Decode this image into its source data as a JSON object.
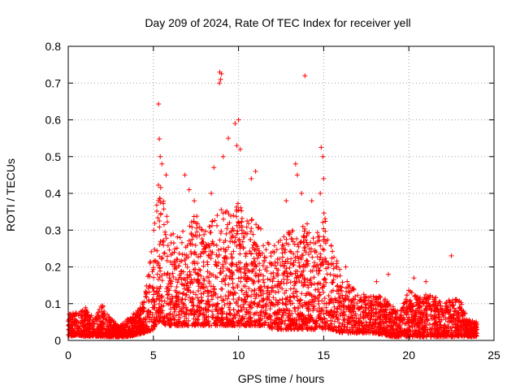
{
  "chart_data": {
    "type": "scatter",
    "title": "Day 209 of 2024, Rate Of TEC Index for receiver yell",
    "xlabel": "GPS time / hours",
    "ylabel": "ROTI / TECUs",
    "xlim": [
      0,
      25
    ],
    "ylim": [
      0,
      0.8
    ],
    "xticks": [
      0,
      5,
      10,
      15,
      20,
      25
    ],
    "yticks": [
      0,
      0.1,
      0.2,
      0.3,
      0.4,
      0.5,
      0.6,
      0.7,
      0.8
    ],
    "xtick_labels": [
      "0",
      "5",
      "10",
      "15",
      "20",
      "25"
    ],
    "ytick_labels": [
      "0",
      "0.1",
      "0.2",
      "0.3",
      "0.4",
      "0.5",
      "0.6",
      "0.7",
      "0.8"
    ],
    "grid": true,
    "marker": "+",
    "color": "#ff0000",
    "series": [
      {
        "name": "ROTI",
        "envelope": {
          "x": [
            0,
            0.5,
            1,
            1.5,
            2,
            2.5,
            3,
            3.5,
            4,
            4.5,
            5,
            5.25,
            5.5,
            5.75,
            6,
            6.5,
            7,
            7.5,
            8,
            8.5,
            9,
            9.5,
            10,
            10.5,
            11,
            11.5,
            12,
            12.5,
            13,
            13.5,
            14,
            14.5,
            15,
            15.5,
            16,
            16.5,
            17,
            17.5,
            18,
            18.5,
            19,
            19.5,
            20,
            20.5,
            21,
            21.5,
            22,
            22.5,
            23,
            23.5,
            24
          ],
          "upper": [
            0.07,
            0.08,
            0.09,
            0.06,
            0.1,
            0.06,
            0.04,
            0.06,
            0.08,
            0.12,
            0.3,
            0.45,
            0.42,
            0.35,
            0.3,
            0.28,
            0.32,
            0.35,
            0.3,
            0.33,
            0.36,
            0.35,
            0.38,
            0.33,
            0.36,
            0.28,
            0.26,
            0.28,
            0.3,
            0.3,
            0.32,
            0.3,
            0.35,
            0.25,
            0.2,
            0.15,
            0.14,
            0.12,
            0.12,
            0.12,
            0.1,
            0.08,
            0.14,
            0.12,
            0.13,
            0.12,
            0.1,
            0.12,
            0.11,
            0.06,
            0.05
          ],
          "lower": [
            0.01,
            0.015,
            0.01,
            0.012,
            0.01,
            0.01,
            0.01,
            0.01,
            0.015,
            0.02,
            0.03,
            0.05,
            0.05,
            0.04,
            0.04,
            0.04,
            0.04,
            0.04,
            0.04,
            0.04,
            0.04,
            0.04,
            0.04,
            0.04,
            0.04,
            0.04,
            0.03,
            0.03,
            0.03,
            0.03,
            0.03,
            0.03,
            0.03,
            0.03,
            0.02,
            0.02,
            0.02,
            0.02,
            0.02,
            0.015,
            0.01,
            0.01,
            0.01,
            0.01,
            0.01,
            0.01,
            0.01,
            0.01,
            0.01,
            0.01,
            0.01
          ]
        },
        "outliers": [
          {
            "x": 5.3,
            "y": 0.643
          },
          {
            "x": 5.35,
            "y": 0.548
          },
          {
            "x": 5.4,
            "y": 0.5
          },
          {
            "x": 5.5,
            "y": 0.48
          },
          {
            "x": 5.75,
            "y": 0.45
          },
          {
            "x": 6.85,
            "y": 0.45
          },
          {
            "x": 7.1,
            "y": 0.41
          },
          {
            "x": 7.4,
            "y": 0.38
          },
          {
            "x": 8.4,
            "y": 0.4
          },
          {
            "x": 8.55,
            "y": 0.47
          },
          {
            "x": 8.9,
            "y": 0.73
          },
          {
            "x": 8.95,
            "y": 0.71
          },
          {
            "x": 8.88,
            "y": 0.7
          },
          {
            "x": 9.0,
            "y": 0.725
          },
          {
            "x": 9.1,
            "y": 0.5
          },
          {
            "x": 9.4,
            "y": 0.55
          },
          {
            "x": 9.8,
            "y": 0.59
          },
          {
            "x": 9.9,
            "y": 0.53
          },
          {
            "x": 10.0,
            "y": 0.6
          },
          {
            "x": 10.1,
            "y": 0.52
          },
          {
            "x": 10.75,
            "y": 0.44
          },
          {
            "x": 11.0,
            "y": 0.46
          },
          {
            "x": 12.8,
            "y": 0.38
          },
          {
            "x": 13.35,
            "y": 0.48
          },
          {
            "x": 13.45,
            "y": 0.45
          },
          {
            "x": 13.9,
            "y": 0.72
          },
          {
            "x": 13.7,
            "y": 0.4
          },
          {
            "x": 14.3,
            "y": 0.38
          },
          {
            "x": 14.85,
            "y": 0.525
          },
          {
            "x": 14.95,
            "y": 0.5
          },
          {
            "x": 15.0,
            "y": 0.44
          },
          {
            "x": 14.8,
            "y": 0.4
          },
          {
            "x": 16.3,
            "y": 0.2
          },
          {
            "x": 18.1,
            "y": 0.16
          },
          {
            "x": 18.8,
            "y": 0.18
          },
          {
            "x": 20.3,
            "y": 0.17
          },
          {
            "x": 21.0,
            "y": 0.16
          },
          {
            "x": 22.5,
            "y": 0.23
          }
        ]
      }
    ]
  }
}
